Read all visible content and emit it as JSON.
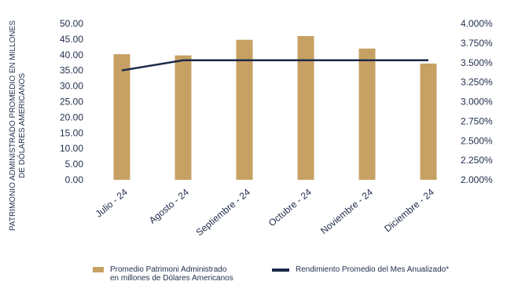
{
  "colors": {
    "bar": "#c6a163",
    "line": "#1b2a4a",
    "text": "#1f2d4a"
  },
  "chart_data": {
    "type": "bar",
    "categories": [
      "Julio - 24",
      "Agosto - 24",
      "Septiembre - 24",
      "Octubre - 24",
      "Noviembre - 24",
      "Diciembre - 24"
    ],
    "series": [
      {
        "name": "Promedio Patrimoni Administrado en millones de Dólares Americanos",
        "type": "bar",
        "axis": "left",
        "values": [
          40.2,
          39.8,
          44.8,
          46.0,
          42.0,
          37.2
        ]
      },
      {
        "name": "Rendimiento Promedio del Mes Anualizado*",
        "type": "line",
        "axis": "right",
        "values": [
          3.4,
          3.53,
          3.53,
          3.53,
          3.53,
          3.53
        ]
      }
    ],
    "ylabel": "PATRIMONIO ADMINISTRADO PROMEDIO EN MILLONES DE DÓLARES AMERICANOS",
    "ylabel_lines": [
      "PATRIMONIO ADMINISTRADO PROMEDIO EN MILLONES",
      "DE DÓLARES AMERICANOS"
    ],
    "ylim": [
      0,
      50
    ],
    "y_ticks": [
      "50.00",
      "45.00",
      "40.00",
      "35.00",
      "30.00",
      "25.00",
      "20.00",
      "15.00",
      "10.00",
      "5.00",
      "0.00"
    ],
    "y2lim": [
      2.0,
      4.0
    ],
    "y2_ticks": [
      "4.000%",
      "3.750%",
      "3.500%",
      "3.250%",
      "3.000%",
      "2.750%",
      "2.500%",
      "2.250%",
      "2.000%"
    ],
    "grid": false,
    "legend_position": "bottom"
  },
  "legend": {
    "bar_label_line1": "Promedio Patrimoni Administrado",
    "bar_label_line2": "en millones de Dólares Americanos",
    "line_label": "Rendimiento Promedio del Mes Anualizado*"
  }
}
